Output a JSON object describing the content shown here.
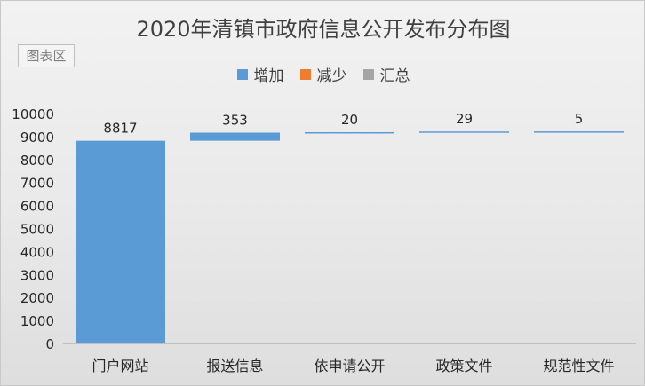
{
  "chart_data": {
    "type": "waterfall",
    "title": "2020年清镇市政府信息公开发布分布图",
    "area_label": "图表区",
    "legend": [
      {
        "label": "增加",
        "color": "#5b9bd5"
      },
      {
        "label": "减少",
        "color": "#ed7d31"
      },
      {
        "label": "汇总",
        "color": "#a5a5a5"
      }
    ],
    "legend_position": "top",
    "categories": [
      "门户网站",
      "报送信息",
      "依申请公开",
      "政策文件",
      "规范性文件"
    ],
    "values": [
      8817,
      353,
      20,
      29,
      5
    ],
    "series_kinds": [
      "增加",
      "增加",
      "增加",
      "增加",
      "增加"
    ],
    "ylim": [
      0,
      10000
    ],
    "yticks": [
      0,
      1000,
      2000,
      3000,
      4000,
      5000,
      6000,
      7000,
      8000,
      9000,
      10000
    ],
    "grid": false
  }
}
